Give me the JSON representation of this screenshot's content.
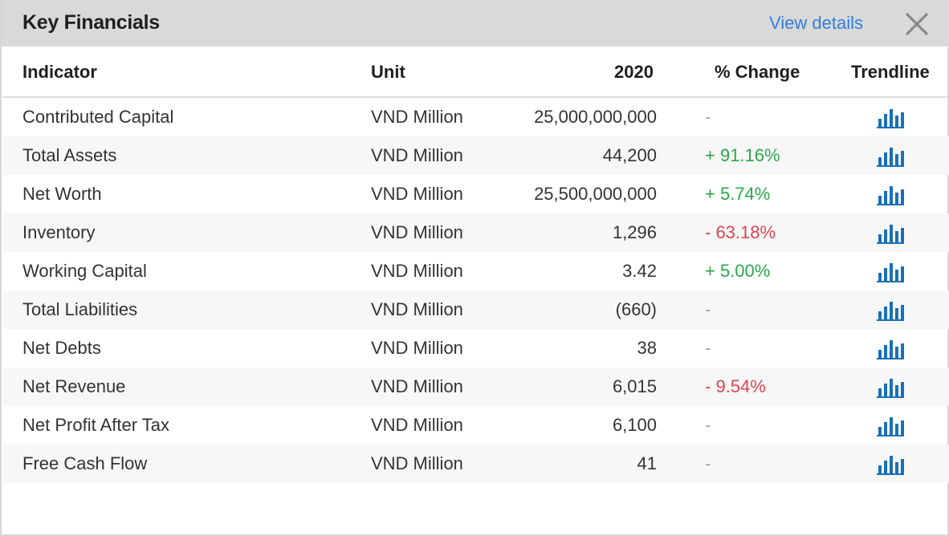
{
  "header": {
    "title": "Key Financials",
    "view_details_label": "View details"
  },
  "columns": {
    "indicator": "Indicator",
    "unit": "Unit",
    "year": "2020",
    "change": "% Change",
    "trendline": "Trendline"
  },
  "rows": [
    {
      "indicator": "Contributed Capital",
      "unit": "VND Million",
      "value": "25,000,000,000",
      "change": "-",
      "change_dir": "none"
    },
    {
      "indicator": "Total Assets",
      "unit": "VND Million",
      "value": "44,200",
      "change": "+ 91.16%",
      "change_dir": "up"
    },
    {
      "indicator": "Net Worth",
      "unit": "VND Million",
      "value": "25,500,000,000",
      "change": "+ 5.74%",
      "change_dir": "up"
    },
    {
      "indicator": "Inventory",
      "unit": "VND Million",
      "value": "1,296",
      "change": "- 63.18%",
      "change_dir": "down"
    },
    {
      "indicator": "Working Capital",
      "unit": "VND Million",
      "value": "3.42",
      "change": "+ 5.00%",
      "change_dir": "up"
    },
    {
      "indicator": "Total Liabilities",
      "unit": "VND Million",
      "value": "(660)",
      "change": "-",
      "change_dir": "none"
    },
    {
      "indicator": "Net Debts",
      "unit": "VND Million",
      "value": "38",
      "change": "-",
      "change_dir": "none"
    },
    {
      "indicator": "Net Revenue",
      "unit": "VND Million",
      "value": "6,015",
      "change": "- 9.54%",
      "change_dir": "down"
    },
    {
      "indicator": "Net Profit After Tax",
      "unit": "VND Million",
      "value": "6,100",
      "change": "-",
      "change_dir": "none"
    },
    {
      "indicator": "Free Cash Flow",
      "unit": "VND Million",
      "value": "41",
      "change": "-",
      "change_dir": "none"
    }
  ],
  "icons": {
    "close": "close-icon",
    "trendline": "bar-chart-icon"
  },
  "colors": {
    "header_bg": "#d9d9d9",
    "link": "#2f7de1",
    "positive": "#2aa84a",
    "negative": "#e04450",
    "neutral": "#a8a8a8",
    "trend_icon": "#1a6fb8"
  }
}
